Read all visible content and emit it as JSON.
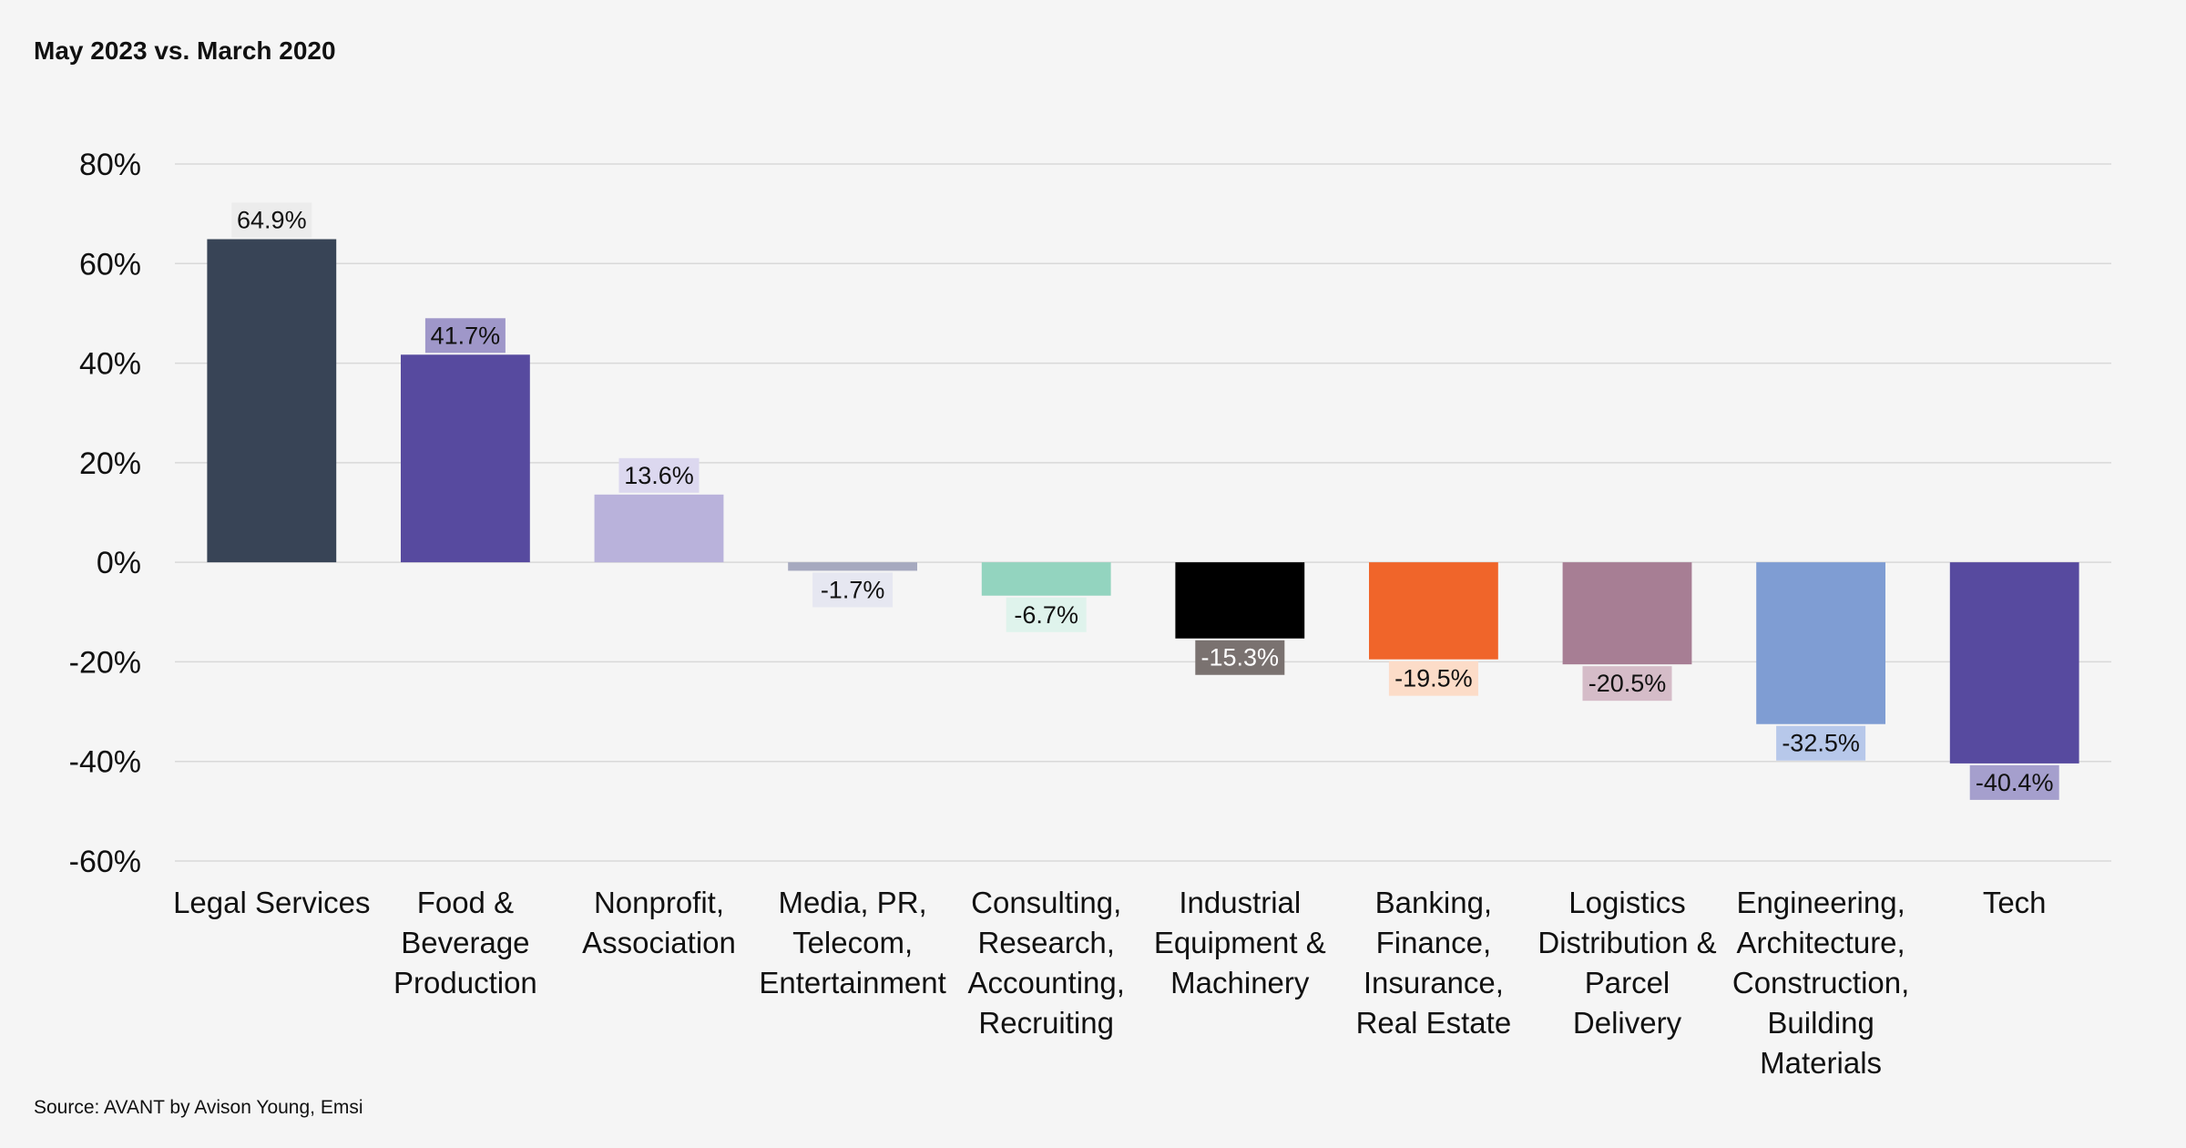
{
  "chart_data": {
    "type": "bar",
    "title": "May 2023 vs. March 2020",
    "source": "Source: AVANT by Avison Young, Emsi",
    "xlabel": "",
    "ylabel": "",
    "ylim": [
      -60,
      80
    ],
    "yticks": [
      80,
      60,
      40,
      20,
      0,
      -20,
      -40,
      -60
    ],
    "ytick_labels": [
      "80%",
      "60%",
      "40%",
      "20%",
      "0%",
      "-20%",
      "-40%",
      "-60%"
    ],
    "grid": true,
    "categories": [
      [
        "Legal Services"
      ],
      [
        "Food &",
        "Beverage",
        "Production"
      ],
      [
        "Nonprofit,",
        "Association"
      ],
      [
        "Media, PR,",
        "Telecom,",
        "Entertainment"
      ],
      [
        "Consulting,",
        "Research,",
        "Accounting,",
        "Recruiting"
      ],
      [
        "Industrial",
        "Equipment &",
        "Machinery"
      ],
      [
        "Banking,",
        "Finance,",
        "Insurance,",
        "Real Estate"
      ],
      [
        "Logistics",
        "Distribution &",
        "Parcel",
        "Delivery"
      ],
      [
        "Engineering,",
        "Architecture,",
        "Construction,",
        "Building",
        "Materials"
      ],
      [
        "Tech"
      ]
    ],
    "values": [
      64.9,
      41.7,
      13.6,
      -1.7,
      -6.7,
      -15.3,
      -19.5,
      -20.5,
      -32.5,
      -40.4
    ],
    "value_labels": [
      "64.9%",
      "41.7%",
      "13.6%",
      "-1.7%",
      "-6.7%",
      "-15.3%",
      "-19.5%",
      "-20.5%",
      "-32.5%",
      "-40.4%"
    ],
    "bar_colors": [
      "#384456",
      "#574a9f",
      "#b9b2db",
      "#a6a9bf",
      "#93d4bf",
      "#000000",
      "#f0652a",
      "#a77e94",
      "#7f9dd3",
      "#574a9f"
    ],
    "label_bg_colors": [
      "#ececec",
      "#9f97c9",
      "#dcd8ef",
      "#e6e7f1",
      "#dff3ec",
      "#7a7270",
      "#fcdcc8",
      "#d5bcc8",
      "#b7c8ea",
      "#a59fcd"
    ],
    "label_text_colors": [
      "#111111",
      "#111111",
      "#111111",
      "#111111",
      "#111111",
      "#ffffff",
      "#111111",
      "#111111",
      "#111111",
      "#111111"
    ]
  }
}
